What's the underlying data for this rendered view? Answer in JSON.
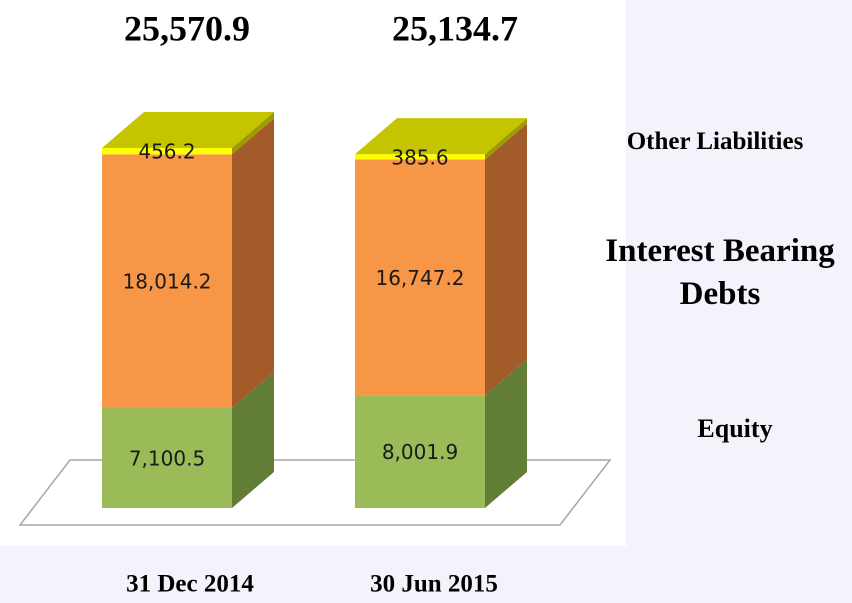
{
  "chart_data": {
    "type": "bar3d_stacked",
    "categories": [
      "31 Dec 2014",
      "30 Jun 2015"
    ],
    "series": [
      {
        "name": "Equity",
        "color": "#9bbb59",
        "side_color": "#627d35",
        "values": [
          7100.5,
          8001.9
        ],
        "value_labels": [
          "7,100.5",
          "8,001.9"
        ]
      },
      {
        "name": "Interest Bearing Debts",
        "color": "#f79646",
        "side_color": "#a35b2a",
        "values": [
          18014.2,
          16747.2
        ],
        "value_labels": [
          "18,014.2",
          "16,747.2"
        ]
      },
      {
        "name": "Other Liabilities",
        "color": "#ffff00",
        "side_color": "#9c9c00",
        "top_color": "#c4c400",
        "values": [
          456.2,
          385.6
        ],
        "value_labels": [
          "456.2",
          "385.6"
        ]
      }
    ],
    "totals": [
      25570.9,
      25134.7
    ],
    "total_labels": [
      "25,570.9",
      "25,134.7"
    ]
  }
}
